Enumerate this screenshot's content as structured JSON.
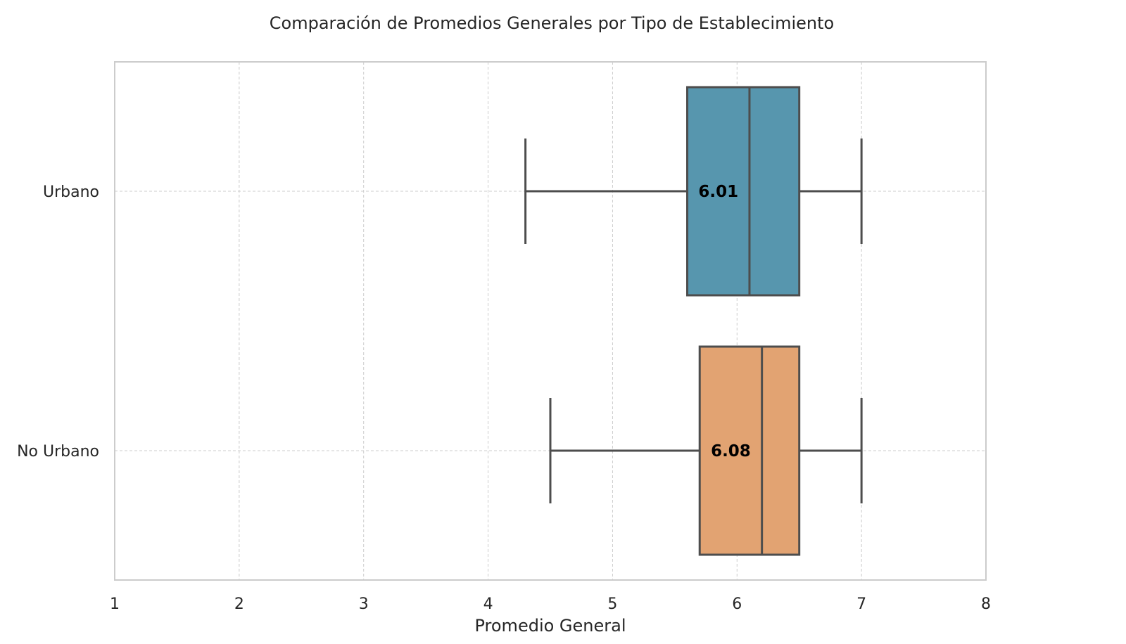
{
  "chart_data": {
    "type": "boxplot",
    "orientation": "horizontal",
    "title": "Comparación de Promedios Generales por Tipo de Establecimiento",
    "xlabel": "Promedio General",
    "ylabel": "",
    "xlim": [
      1,
      8
    ],
    "xticks": [
      "1",
      "2",
      "3",
      "4",
      "5",
      "6",
      "7",
      "8"
    ],
    "grid": true,
    "categories": [
      "Urbano",
      "No Urbano"
    ],
    "boxes": [
      {
        "category": "Urbano",
        "whisker_low": 4.3,
        "q1": 5.6,
        "median": 6.1,
        "q3": 6.5,
        "whisker_high": 7.0,
        "mean_label": "6.01",
        "color": "#5796ae"
      },
      {
        "category": "No Urbano",
        "whisker_low": 4.5,
        "q1": 5.7,
        "median": 6.2,
        "q3": 6.5,
        "whisker_high": 7.0,
        "mean_label": "6.08",
        "color": "#e2a372"
      }
    ],
    "line_color": "#4d4d4d",
    "grid_color": "#cccccc",
    "frame_color": "#cccccc"
  }
}
